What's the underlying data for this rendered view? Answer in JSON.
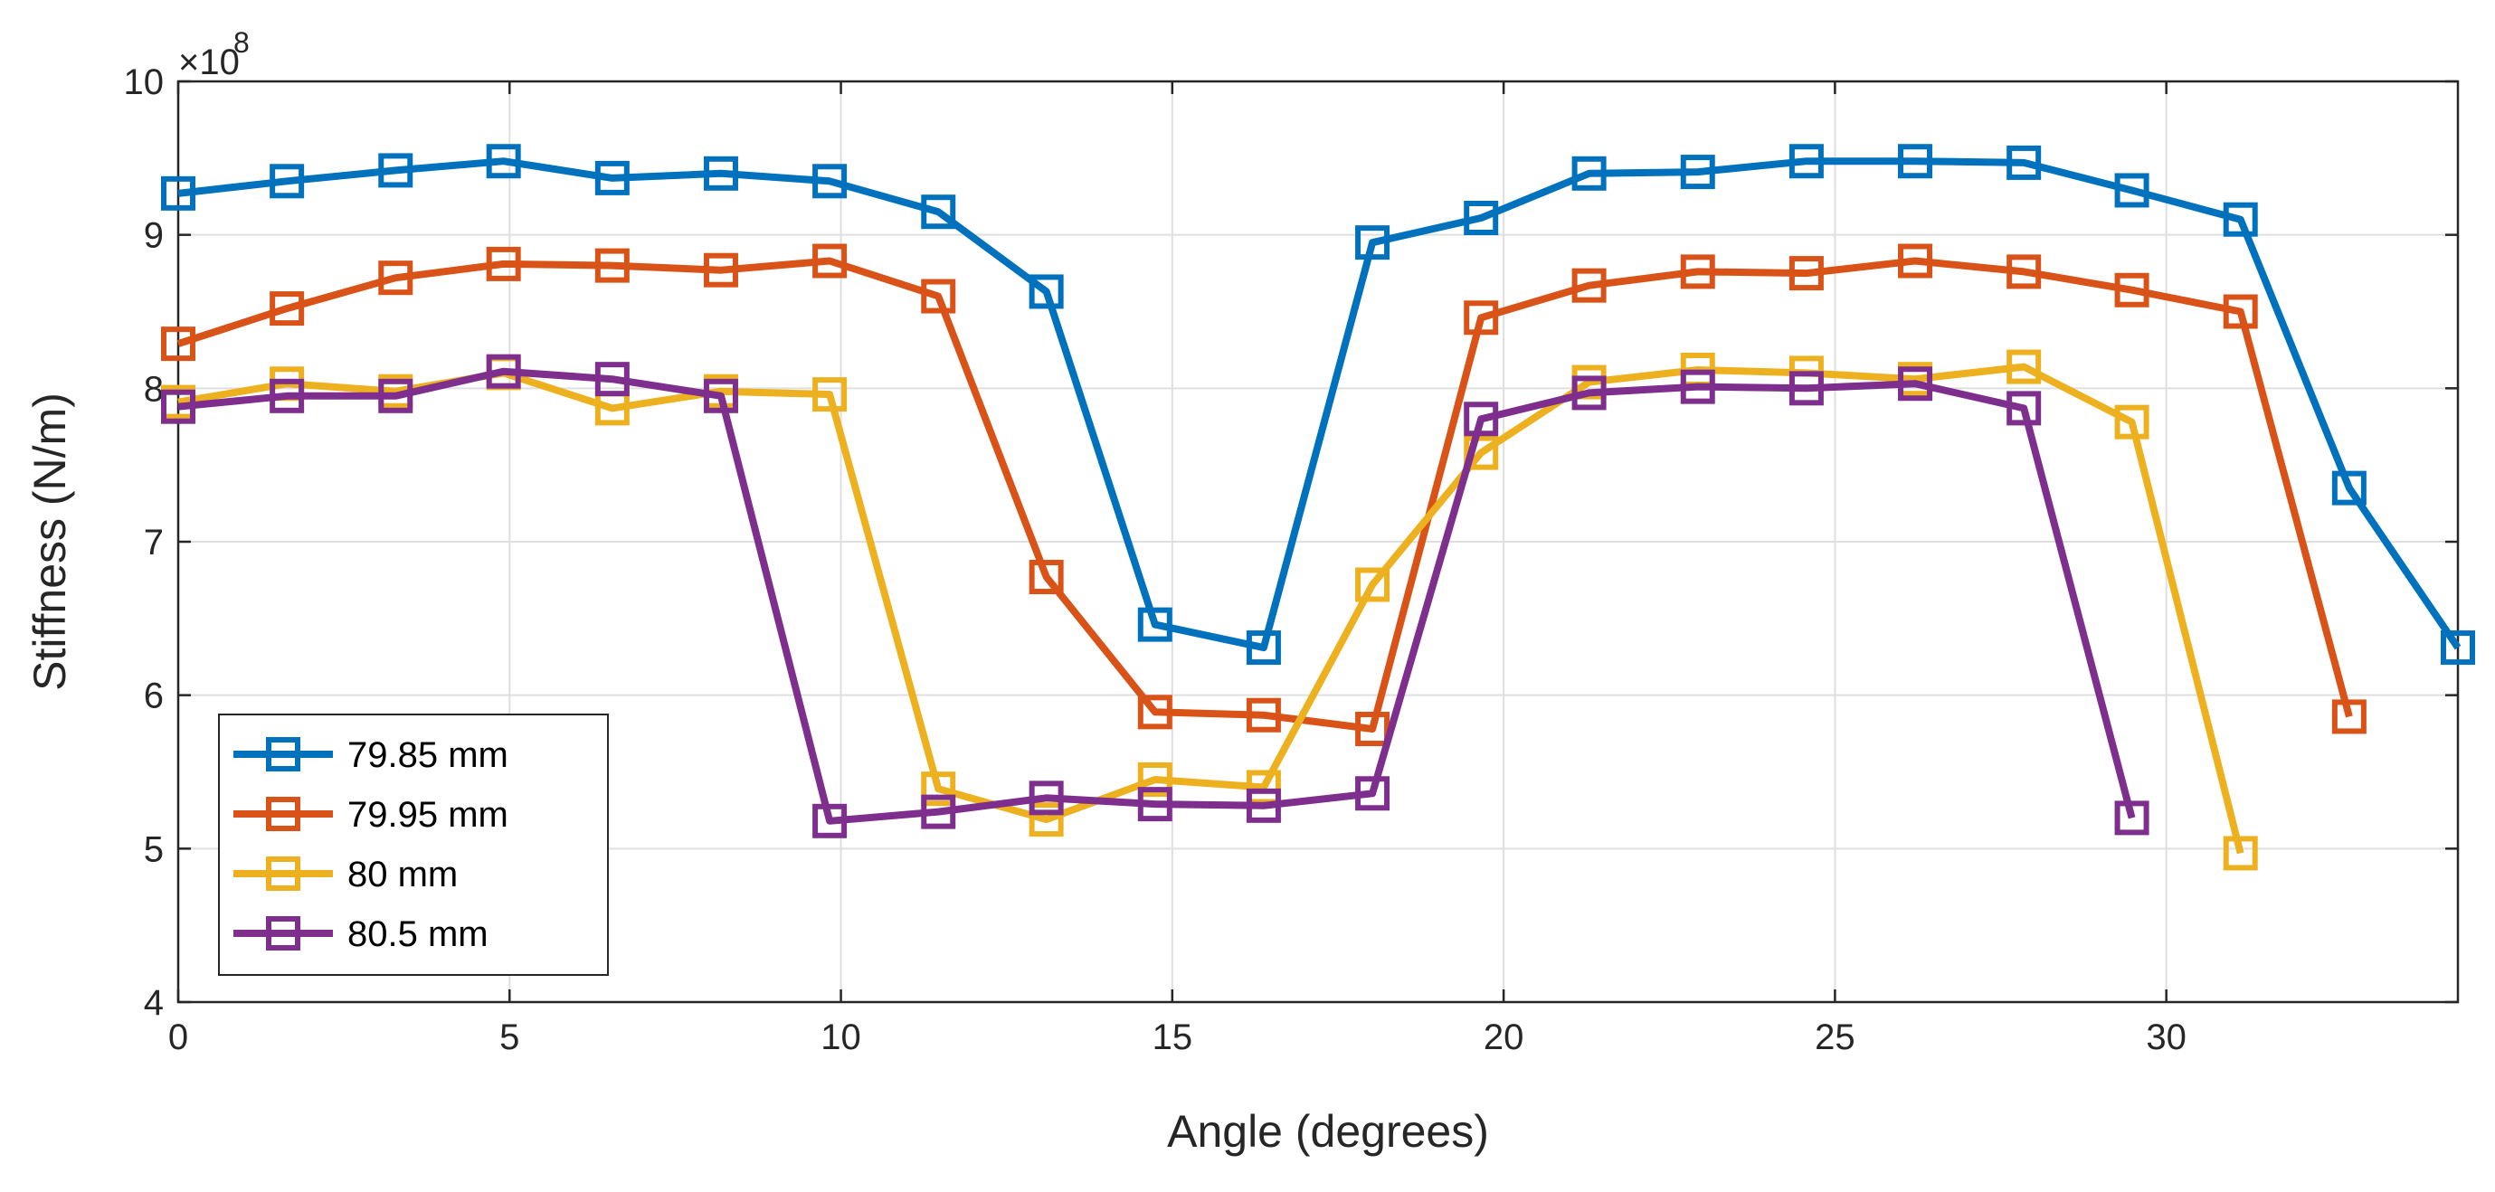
{
  "chart_data": {
    "type": "line",
    "title": "",
    "xlabel": "Angle (degrees)",
    "ylabel": "Stiffness (N/m)",
    "y_multiplier_label": "×10",
    "y_multiplier_exponent": "8",
    "xlim": [
      0,
      34.4
    ],
    "ylim": [
      4,
      10
    ],
    "xticks": [
      0,
      5,
      10,
      15,
      20,
      25,
      30
    ],
    "yticks": [
      4,
      5,
      6,
      7,
      8,
      9,
      10
    ],
    "grid": true,
    "legend_position": "bottom-left",
    "marker": "square",
    "series": [
      {
        "name": "79.85 mm",
        "color": "#0072BD",
        "x": [
          0,
          1.64,
          3.28,
          4.91,
          6.55,
          8.19,
          9.83,
          11.47,
          13.1,
          14.74,
          16.38,
          18.02,
          19.66,
          21.29,
          22.93,
          24.57,
          26.21,
          27.85,
          29.48,
          31.12,
          32.76,
          34.4
        ],
        "values": [
          9.27,
          9.35,
          9.42,
          9.48,
          9.37,
          9.4,
          9.35,
          9.15,
          8.63,
          6.46,
          6.31,
          8.95,
          9.11,
          9.4,
          9.41,
          9.48,
          9.48,
          9.47,
          9.29,
          9.1,
          7.35,
          6.31
        ]
      },
      {
        "name": "79.95 mm",
        "color": "#D95319",
        "x": [
          0,
          1.64,
          3.28,
          4.91,
          6.55,
          8.19,
          9.83,
          11.47,
          13.1,
          14.74,
          16.38,
          18.02,
          19.66,
          21.29,
          22.93,
          24.57,
          26.21,
          27.85,
          29.48,
          31.12,
          32.76
        ],
        "values": [
          8.29,
          8.52,
          8.72,
          8.81,
          8.8,
          8.77,
          8.83,
          8.6,
          6.77,
          5.89,
          5.87,
          5.78,
          8.46,
          8.67,
          8.76,
          8.75,
          8.83,
          8.76,
          8.64,
          8.5,
          5.86
        ]
      },
      {
        "name": "80 mm",
        "color": "#EDB120",
        "x": [
          0,
          1.64,
          3.28,
          4.91,
          6.55,
          8.19,
          9.83,
          11.47,
          13.1,
          14.74,
          16.38,
          18.02,
          19.66,
          21.29,
          22.93,
          24.57,
          26.21,
          27.85,
          29.48,
          31.12
        ],
        "values": [
          7.91,
          8.03,
          7.98,
          8.1,
          7.87,
          7.98,
          7.96,
          5.39,
          5.19,
          5.45,
          5.4,
          6.72,
          7.58,
          8.04,
          8.12,
          8.1,
          8.06,
          8.14,
          7.78,
          4.97
        ]
      },
      {
        "name": "80.5 mm",
        "color": "#7E2F8E",
        "x": [
          0,
          1.64,
          3.28,
          4.91,
          6.55,
          8.19,
          9.83,
          11.47,
          13.1,
          14.74,
          16.38,
          18.02,
          19.66,
          21.29,
          22.93,
          24.57,
          26.21,
          27.85,
          29.48
        ],
        "values": [
          7.88,
          7.95,
          7.95,
          8.11,
          8.06,
          7.95,
          5.18,
          5.24,
          5.33,
          5.29,
          5.28,
          5.36,
          7.8,
          7.97,
          8.01,
          8.0,
          8.03,
          7.87,
          5.2
        ]
      }
    ]
  }
}
